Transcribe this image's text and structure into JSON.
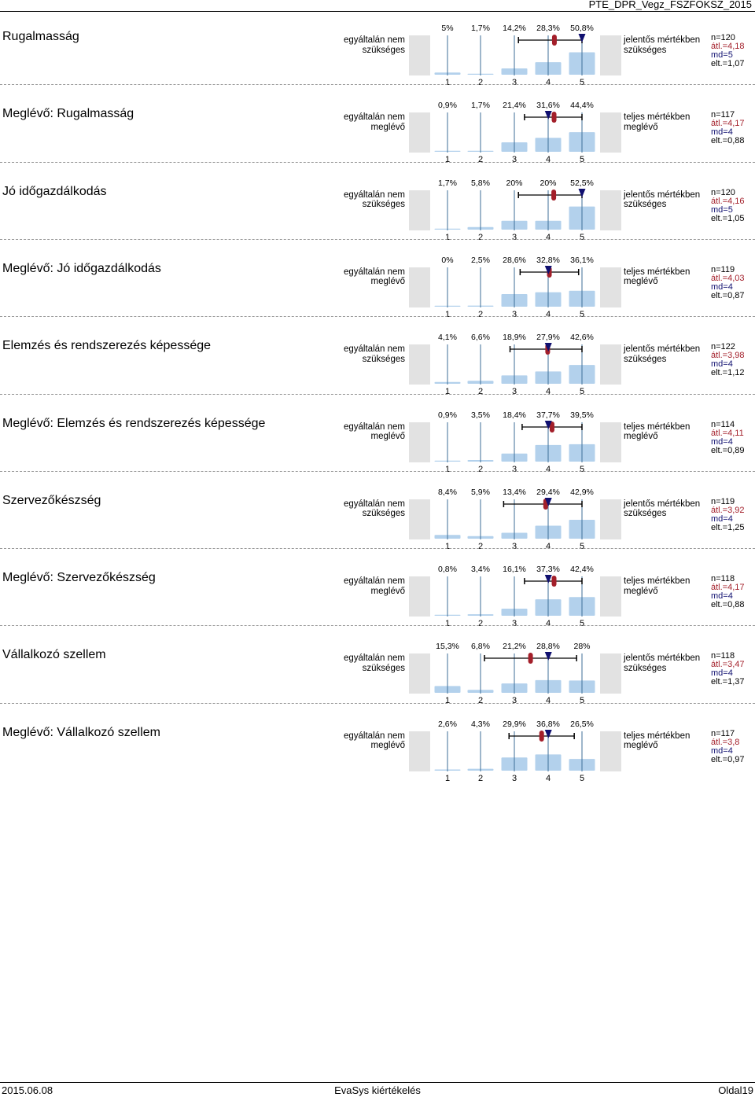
{
  "header": {
    "title": "PTE_DPR_Vegz_FSZFOKSZ_2015"
  },
  "scale_labels": [
    "1",
    "2",
    "3",
    "4",
    "5"
  ],
  "colors": {
    "bar": "#b3d1ec",
    "gray_box": "#e2e2e2",
    "gridline": "#3e6e97",
    "mean_marker": "#a31f2a",
    "median_marker": "#101070"
  },
  "rows": [
    {
      "label": "Rugalmasság",
      "left": [
        "egyáltalán nem",
        "szükséges"
      ],
      "right": [
        "jelentős mértékben",
        "szükséges"
      ],
      "percents": [
        "5%",
        "1,7%",
        "14,2%",
        "28,3%",
        "50,8%"
      ],
      "values": [
        5,
        1.7,
        14.2,
        28.3,
        50.8
      ],
      "stats": {
        "n": "n=120",
        "mean": "átl.=4,18",
        "md": "md=5",
        "sd": "elt.=1,07"
      },
      "mean": 4.18,
      "median": 5,
      "sd": 1.07
    },
    {
      "label": "Meglévő: Rugalmasság",
      "left": [
        "egyáltalán nem",
        "meglévő"
      ],
      "right": [
        "teljes mértékben",
        "meglévő"
      ],
      "percents": [
        "0,9%",
        "1,7%",
        "21,4%",
        "31,6%",
        "44,4%"
      ],
      "values": [
        0.9,
        1.7,
        21.4,
        31.6,
        44.4
      ],
      "stats": {
        "n": "n=117",
        "mean": "átl.=4,17",
        "md": "md=4",
        "sd": "elt.=0,88"
      },
      "mean": 4.17,
      "median": 4,
      "sd": 0.88
    },
    {
      "label": "Jó időgazdálkodás",
      "left": [
        "egyáltalán nem",
        "szükséges"
      ],
      "right": [
        "jelentős mértékben",
        "szükséges"
      ],
      "percents": [
        "1,7%",
        "5,8%",
        "20%",
        "20%",
        "52,5%"
      ],
      "values": [
        1.7,
        5.8,
        20,
        20,
        52.5
      ],
      "stats": {
        "n": "n=120",
        "mean": "átl.=4,16",
        "md": "md=5",
        "sd": "elt.=1,05"
      },
      "mean": 4.16,
      "median": 5,
      "sd": 1.05
    },
    {
      "label": "Meglévő: Jó időgazdálkodás",
      "left": [
        "egyáltalán nem",
        "meglévő"
      ],
      "right": [
        "teljes mértékben",
        "meglévő"
      ],
      "percents": [
        "0%",
        "2,5%",
        "28,6%",
        "32,8%",
        "36,1%"
      ],
      "values": [
        0,
        2.5,
        28.6,
        32.8,
        36.1
      ],
      "stats": {
        "n": "n=119",
        "mean": "átl.=4,03",
        "md": "md=4",
        "sd": "elt.=0,87"
      },
      "mean": 4.03,
      "median": 4,
      "sd": 0.87
    },
    {
      "label": "Elemzés és rendszerezés képessége",
      "left": [
        "egyáltalán nem",
        "szükséges"
      ],
      "right": [
        "jelentős mértékben",
        "szükséges"
      ],
      "percents": [
        "4,1%",
        "6,6%",
        "18,9%",
        "27,9%",
        "42,6%"
      ],
      "values": [
        4.1,
        6.6,
        18.9,
        27.9,
        42.6
      ],
      "stats": {
        "n": "n=122",
        "mean": "átl.=3,98",
        "md": "md=4",
        "sd": "elt.=1,12"
      },
      "mean": 3.98,
      "median": 4,
      "sd": 1.12
    },
    {
      "label": "Meglévő: Elemzés és rendszerezés képessége",
      "left": [
        "egyáltalán nem",
        "meglévő"
      ],
      "right": [
        "teljes mértékben",
        "meglévő"
      ],
      "percents": [
        "0,9%",
        "3,5%",
        "18,4%",
        "37,7%",
        "39,5%"
      ],
      "values": [
        0.9,
        3.5,
        18.4,
        37.7,
        39.5
      ],
      "stats": {
        "n": "n=114",
        "mean": "átl.=4,11",
        "md": "md=4",
        "sd": "elt.=0,89"
      },
      "mean": 4.11,
      "median": 4,
      "sd": 0.89
    },
    {
      "label": "Szervezőkészség",
      "left": [
        "egyáltalán nem",
        "szükséges"
      ],
      "right": [
        "jelentős mértékben",
        "szükséges"
      ],
      "percents": [
        "8,4%",
        "5,9%",
        "13,4%",
        "29,4%",
        "42,9%"
      ],
      "values": [
        8.4,
        5.9,
        13.4,
        29.4,
        42.9
      ],
      "stats": {
        "n": "n=119",
        "mean": "átl.=3,92",
        "md": "md=4",
        "sd": "elt.=1,25"
      },
      "mean": 3.92,
      "median": 4,
      "sd": 1.25
    },
    {
      "label": "Meglévő: Szervezőkészség",
      "left": [
        "egyáltalán nem",
        "meglévő"
      ],
      "right": [
        "teljes mértékben",
        "meglévő"
      ],
      "percents": [
        "0,8%",
        "3,4%",
        "16,1%",
        "37,3%",
        "42,4%"
      ],
      "values": [
        0.8,
        3.4,
        16.1,
        37.3,
        42.4
      ],
      "stats": {
        "n": "n=118",
        "mean": "átl.=4,17",
        "md": "md=4",
        "sd": "elt.=0,88"
      },
      "mean": 4.17,
      "median": 4,
      "sd": 0.88
    },
    {
      "label": "Vállalkozó szellem",
      "left": [
        "egyáltalán nem",
        "szükséges"
      ],
      "right": [
        "jelentős mértékben",
        "szükséges"
      ],
      "percents": [
        "15,3%",
        "6,8%",
        "21,2%",
        "28,8%",
        "28%"
      ],
      "values": [
        15.3,
        6.8,
        21.2,
        28.8,
        28
      ],
      "stats": {
        "n": "n=118",
        "mean": "átl.=3,47",
        "md": "md=4",
        "sd": "elt.=1,37"
      },
      "mean": 3.47,
      "median": 4,
      "sd": 1.37
    },
    {
      "label": "Meglévő: Vállalkozó szellem",
      "left": [
        "egyáltalán nem",
        "meglévő"
      ],
      "right": [
        "teljes mértékben",
        "meglévő"
      ],
      "percents": [
        "2,6%",
        "4,3%",
        "29,9%",
        "36,8%",
        "26,5%"
      ],
      "values": [
        2.6,
        4.3,
        29.9,
        36.8,
        26.5
      ],
      "stats": {
        "n": "n=117",
        "mean": "átl.=3,8",
        "md": "md=4",
        "sd": "elt.=0,97"
      },
      "mean": 3.8,
      "median": 4,
      "sd": 0.97
    }
  ],
  "footer": {
    "date": "2015.06.08",
    "center": "EvaSys kiértékelés",
    "page": "Oldal19"
  }
}
